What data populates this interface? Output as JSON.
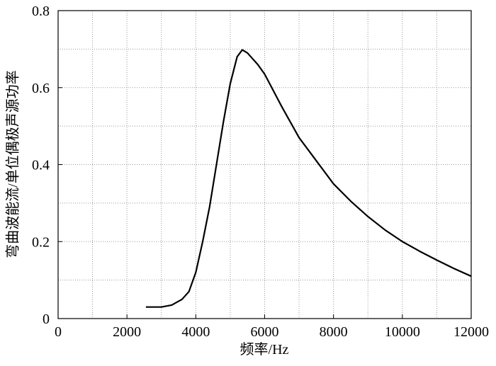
{
  "chart_data": {
    "type": "line",
    "xlabel": "频率/Hz",
    "ylabel": "弯曲波能流/单位偶极声源功率",
    "x": [
      2550,
      3000,
      3300,
      3600,
      3800,
      4000,
      4200,
      4400,
      4600,
      4800,
      5000,
      5200,
      5350,
      5500,
      5800,
      6000,
      6500,
      7000,
      7500,
      8000,
      8500,
      9000,
      9500,
      10000,
      10500,
      11000,
      11500,
      12000
    ],
    "series": [
      {
        "color": "#000000",
        "values": [
          0.03,
          0.03,
          0.035,
          0.05,
          0.07,
          0.12,
          0.2,
          0.29,
          0.4,
          0.51,
          0.61,
          0.68,
          0.698,
          0.69,
          0.66,
          0.635,
          0.55,
          0.47,
          0.41,
          0.35,
          0.305,
          0.265,
          0.23,
          0.2,
          0.175,
          0.152,
          0.13,
          0.11
        ]
      }
    ],
    "xlim": [
      0,
      12000
    ],
    "xticks": [
      0,
      2000,
      4000,
      6000,
      8000,
      10000,
      12000
    ],
    "ylim": [
      0,
      0.8
    ],
    "yticks": [
      0,
      0.2,
      0.4,
      0.6,
      0.8
    ],
    "grid": true
  }
}
